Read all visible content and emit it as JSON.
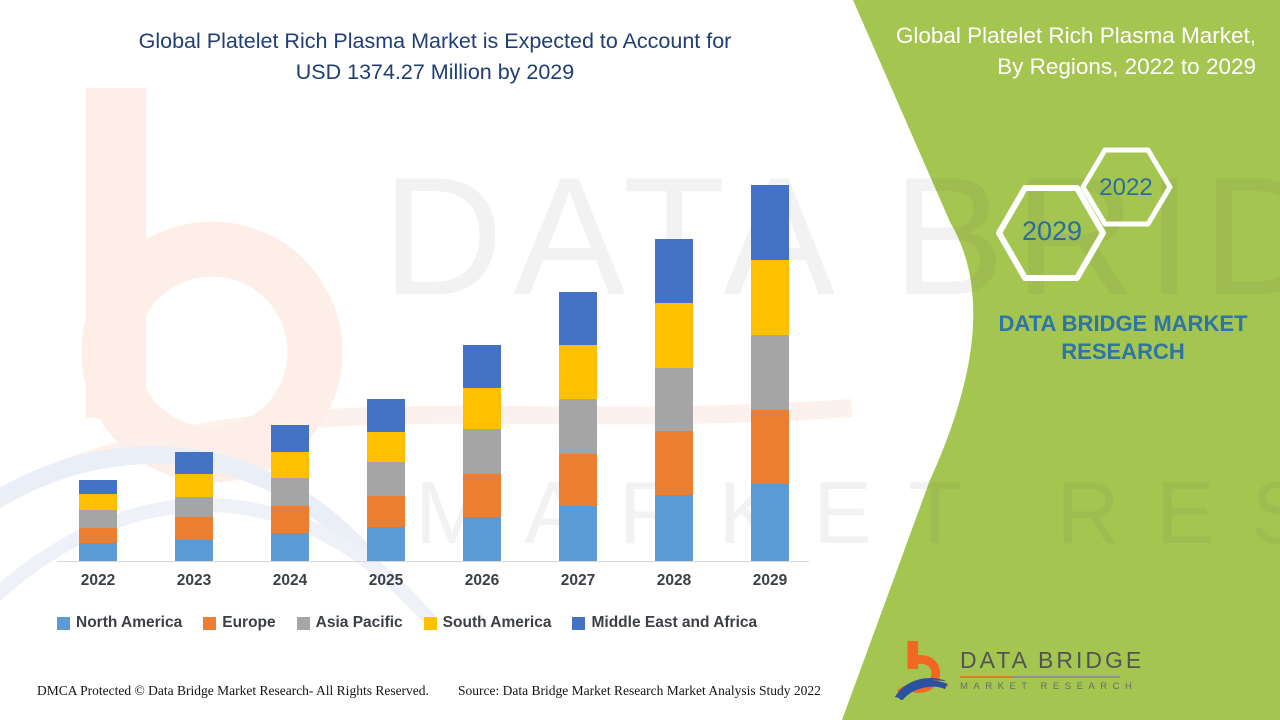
{
  "header": {
    "title_line1": "Global Platelet Rich Plasma Market is Expected to Account for",
    "title_line2": "USD 1374.27 Million by 2029",
    "title_color": "#1f3e73"
  },
  "side_panel": {
    "panel_color": "#a5c551",
    "accent_text_color": "#2e74a4",
    "title_line1": "Global Platelet Rich Plasma Market,",
    "title_line2": "By Regions, 2022 to 2029",
    "hexagon_small_label": "2022",
    "hexagon_large_label": "2029",
    "brand_line1": "DATA BRIDGE MARKET",
    "brand_line2": "RESEARCH"
  },
  "logo": {
    "name": "DATA BRIDGE",
    "subtitle": "MARKET RESEARCH",
    "orange": "#f26822",
    "blue": "#2b51a0"
  },
  "watermark": {
    "row1": "DATA BRIDGE",
    "row2": "MARKET RESEARCH"
  },
  "footer": {
    "dmca": "DMCA Protected © Data Bridge Market Research- All Rights Reserved.",
    "source": "Source: Data Bridge Market Research Market Analysis Study 2022"
  },
  "chart_data": {
    "type": "bar",
    "stacked": true,
    "title": "Global Platelet Rich Plasma Market is Expected to Account for USD 1374.27 Million by 2029",
    "unit": "USD Million (values estimated from bar heights; 2029 total = 1374.27)",
    "categories": [
      "2022",
      "2023",
      "2024",
      "2025",
      "2026",
      "2027",
      "2028",
      "2029"
    ],
    "series": [
      {
        "name": "North America",
        "color": "#5B9BD5",
        "values": [
          66,
          77,
          102,
          124,
          161,
          201,
          241,
          281
        ]
      },
      {
        "name": "Europe",
        "color": "#ED7D31",
        "values": [
          55,
          84,
          99,
          113,
          157,
          190,
          234,
          270
        ]
      },
      {
        "name": "Asia Pacific",
        "color": "#A5A5A5",
        "values": [
          66,
          73,
          102,
          124,
          164,
          201,
          230,
          274
        ]
      },
      {
        "name": "South America",
        "color": "#FFC000",
        "values": [
          58,
          84,
          95,
          110,
          150,
          197,
          238,
          274
        ]
      },
      {
        "name": "Middle East and Africa",
        "color": "#4472C4",
        "values": [
          51,
          80,
          99,
          121,
          157,
          194,
          234,
          274
        ]
      }
    ],
    "totals": [
      296,
      398,
      497,
      592,
      789,
      983,
      1177,
      1373
    ],
    "xlabel": "",
    "ylabel": "",
    "ylim": [
      0,
      1450
    ],
    "grid": false,
    "y_axis_visible": false,
    "legend_position": "bottom"
  }
}
